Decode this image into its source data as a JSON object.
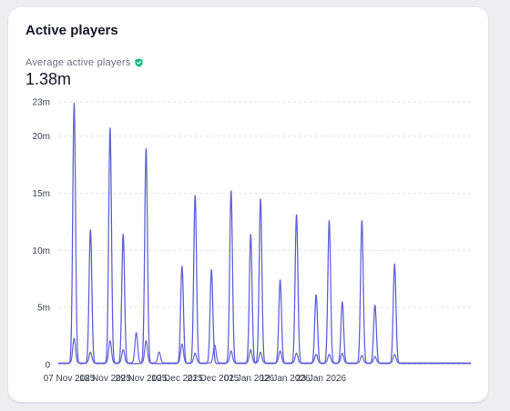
{
  "card": {
    "title": "Active players",
    "metric_label": "Average active players",
    "metric_icon": "verified-shield-icon",
    "metric_value": "1.38m"
  },
  "colors": {
    "line": "#5b5bd6",
    "grid": "#e5e7eb",
    "badge": "#10b981"
  },
  "chart_data": {
    "type": "line",
    "title": "",
    "xlabel": "",
    "ylabel": "",
    "ylim": [
      0,
      23000000
    ],
    "yticks": [
      0,
      5000000,
      10000000,
      15000000,
      20000000,
      23000000
    ],
    "ytick_labels": [
      "0",
      "5m",
      "10m",
      "15m",
      "20m",
      "23m"
    ],
    "x_start": "2025-11-07",
    "x_end": "2026-01-31",
    "xticks": [
      "2025-11-07",
      "2025-11-18",
      "2025-11-29",
      "2025-12-10",
      "2025-12-21",
      "2026-01-01",
      "2026-01-12",
      "2026-01-23"
    ],
    "xtick_labels": [
      "07 Nov 2025",
      "18 Nov 2025",
      "29 Nov 2025",
      "10 Dec 2025",
      "21 Dec 2025",
      "01 Jan 2026",
      "12 Jan 2026",
      "23 Jan 2026"
    ],
    "grid": true,
    "series": [
      {
        "name": "",
        "baseline": 100000,
        "peaks": [
          {
            "date": "2025-11-08",
            "value": 22900000
          },
          {
            "date": "2025-11-13",
            "value": 11800000
          },
          {
            "date": "2025-11-19",
            "value": 20700000
          },
          {
            "date": "2025-11-23",
            "value": 11400000
          },
          {
            "date": "2025-11-30",
            "value": 18900000
          },
          {
            "date": "2025-12-11",
            "value": 8600000
          },
          {
            "date": "2025-12-15",
            "value": 14800000
          },
          {
            "date": "2025-12-20",
            "value": 8300000
          },
          {
            "date": "2025-12-26",
            "value": 15200000
          },
          {
            "date": "2026-01-01",
            "value": 11400000
          },
          {
            "date": "2026-01-04",
            "value": 14500000
          },
          {
            "date": "2026-01-10",
            "value": 7400000
          },
          {
            "date": "2026-01-15",
            "value": 13100000
          },
          {
            "date": "2026-01-21",
            "value": 6100000
          },
          {
            "date": "2026-01-25",
            "value": 12600000
          },
          {
            "date": "2026-01-29",
            "value": 5500000
          },
          {
            "date": "2026-02-04",
            "value": 12600000
          },
          {
            "date": "2026-02-08",
            "value": 5200000
          },
          {
            "date": "2026-02-14",
            "value": 8800000
          }
        ]
      },
      {
        "name": "",
        "baseline": 150000,
        "peaks": [
          {
            "date": "2025-11-08",
            "value": 2300000
          },
          {
            "date": "2025-11-13",
            "value": 1100000
          },
          {
            "date": "2025-11-19",
            "value": 2100000
          },
          {
            "date": "2025-11-23",
            "value": 1300000
          },
          {
            "date": "2025-11-27",
            "value": 2800000
          },
          {
            "date": "2025-11-30",
            "value": 2100000
          },
          {
            "date": "2025-12-04",
            "value": 1100000
          },
          {
            "date": "2025-12-11",
            "value": 1800000
          },
          {
            "date": "2025-12-15",
            "value": 1000000
          },
          {
            "date": "2025-12-21",
            "value": 1700000
          },
          {
            "date": "2025-12-26",
            "value": 1200000
          },
          {
            "date": "2026-01-01",
            "value": 1300000
          },
          {
            "date": "2026-01-04",
            "value": 1100000
          },
          {
            "date": "2026-01-10",
            "value": 1200000
          },
          {
            "date": "2026-01-15",
            "value": 1000000
          },
          {
            "date": "2026-01-21",
            "value": 900000
          },
          {
            "date": "2026-01-25",
            "value": 900000
          },
          {
            "date": "2026-01-29",
            "value": 1000000
          },
          {
            "date": "2026-02-04",
            "value": 800000
          },
          {
            "date": "2026-02-08",
            "value": 700000
          },
          {
            "date": "2026-02-14",
            "value": 900000
          }
        ]
      }
    ]
  }
}
